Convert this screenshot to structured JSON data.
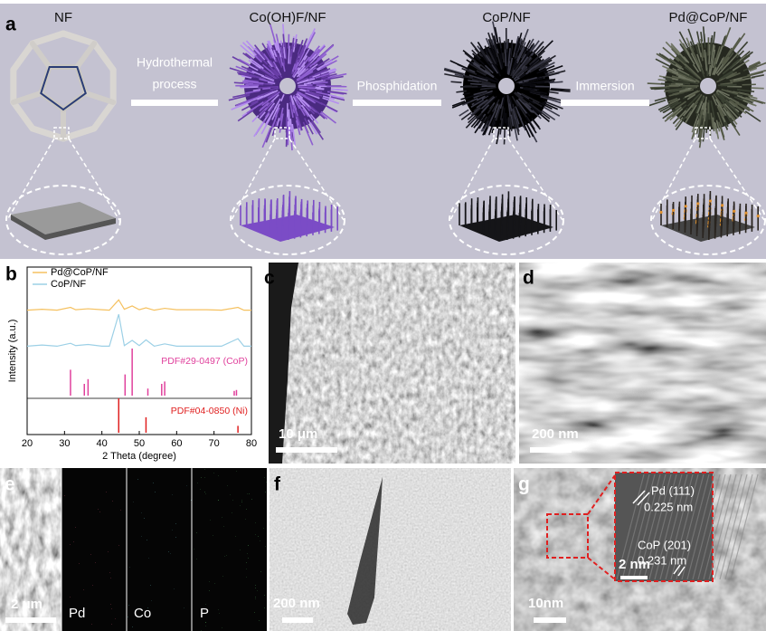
{
  "panel_a": {
    "label": "a",
    "stages": [
      "NF",
      "Co(OH)F/NF",
      "CoP/NF",
      "Pd@CoP/NF"
    ],
    "steps": [
      [
        "Hydrothermal",
        "process"
      ],
      [
        "Phosphidation"
      ],
      [
        "Immersion"
      ]
    ]
  },
  "panel_b": {
    "label": "b"
  },
  "chart_data": {
    "type": "line",
    "xlabel": "2 Theta (degree)",
    "ylabel": "Intensity (a.u.)",
    "xlim": [
      20,
      80
    ],
    "xticks": [
      20,
      30,
      40,
      50,
      60,
      70,
      80
    ],
    "ylim": [
      0,
      100
    ],
    "x": [
      20,
      24,
      28,
      31.6,
      33,
      36.3,
      40,
      42,
      44.5,
      46,
      48.1,
      50,
      51.8,
      54,
      56.8,
      60,
      64,
      68,
      72,
      76.4,
      78,
      80
    ],
    "series": [
      {
        "name": "Pd@CoP/NF",
        "color": "#f5c160",
        "type": "line",
        "values": [
          18,
          20,
          18,
          24,
          19,
          21,
          19,
          18,
          40,
          20,
          27,
          19,
          23,
          18,
          22,
          19,
          19,
          19,
          18,
          24,
          18,
          18
        ]
      },
      {
        "name": "CoP/NF",
        "color": "#9cd0e6",
        "type": "line",
        "values": [
          15,
          17,
          15,
          20,
          16,
          18,
          15,
          15,
          70,
          16,
          25,
          16,
          26,
          15,
          19,
          15,
          15,
          15,
          15,
          28,
          15,
          15
        ]
      },
      {
        "name": "PDF#29-0497 (CoP)",
        "color": "#e0409c",
        "type": "bar",
        "x": [
          31.6,
          35.3,
          36.3,
          46.2,
          48.1,
          52.3,
          56.0,
          56.8,
          75.4,
          76.0
        ],
        "values": [
          55,
          25,
          35,
          45,
          100,
          15,
          25,
          30,
          10,
          12
        ]
      },
      {
        "name": "PDF#04-0850 (Ni)",
        "color": "#e02020",
        "type": "bar",
        "x": [
          44.5,
          51.8,
          76.4
        ],
        "values": [
          100,
          45,
          20
        ]
      }
    ]
  },
  "panel_c": {
    "label": "c",
    "scale_bar": "10 μm"
  },
  "panel_d": {
    "label": "d",
    "scale_bar": "200 nm"
  },
  "panel_e": {
    "label": "e",
    "scale_bar": "2 μm",
    "maps": [
      "Pd",
      "Co",
      "P"
    ]
  },
  "panel_f": {
    "label": "f",
    "scale_bar": "200 nm"
  },
  "panel_g": {
    "label": "g",
    "scale_bar": "10nm",
    "inset": {
      "scale_bar": "2 nm",
      "lattices": [
        {
          "plane": "Pd (111)",
          "spacing": "0.225 nm"
        },
        {
          "plane": "CoP (201)",
          "spacing": "0.231 nm"
        }
      ]
    }
  }
}
